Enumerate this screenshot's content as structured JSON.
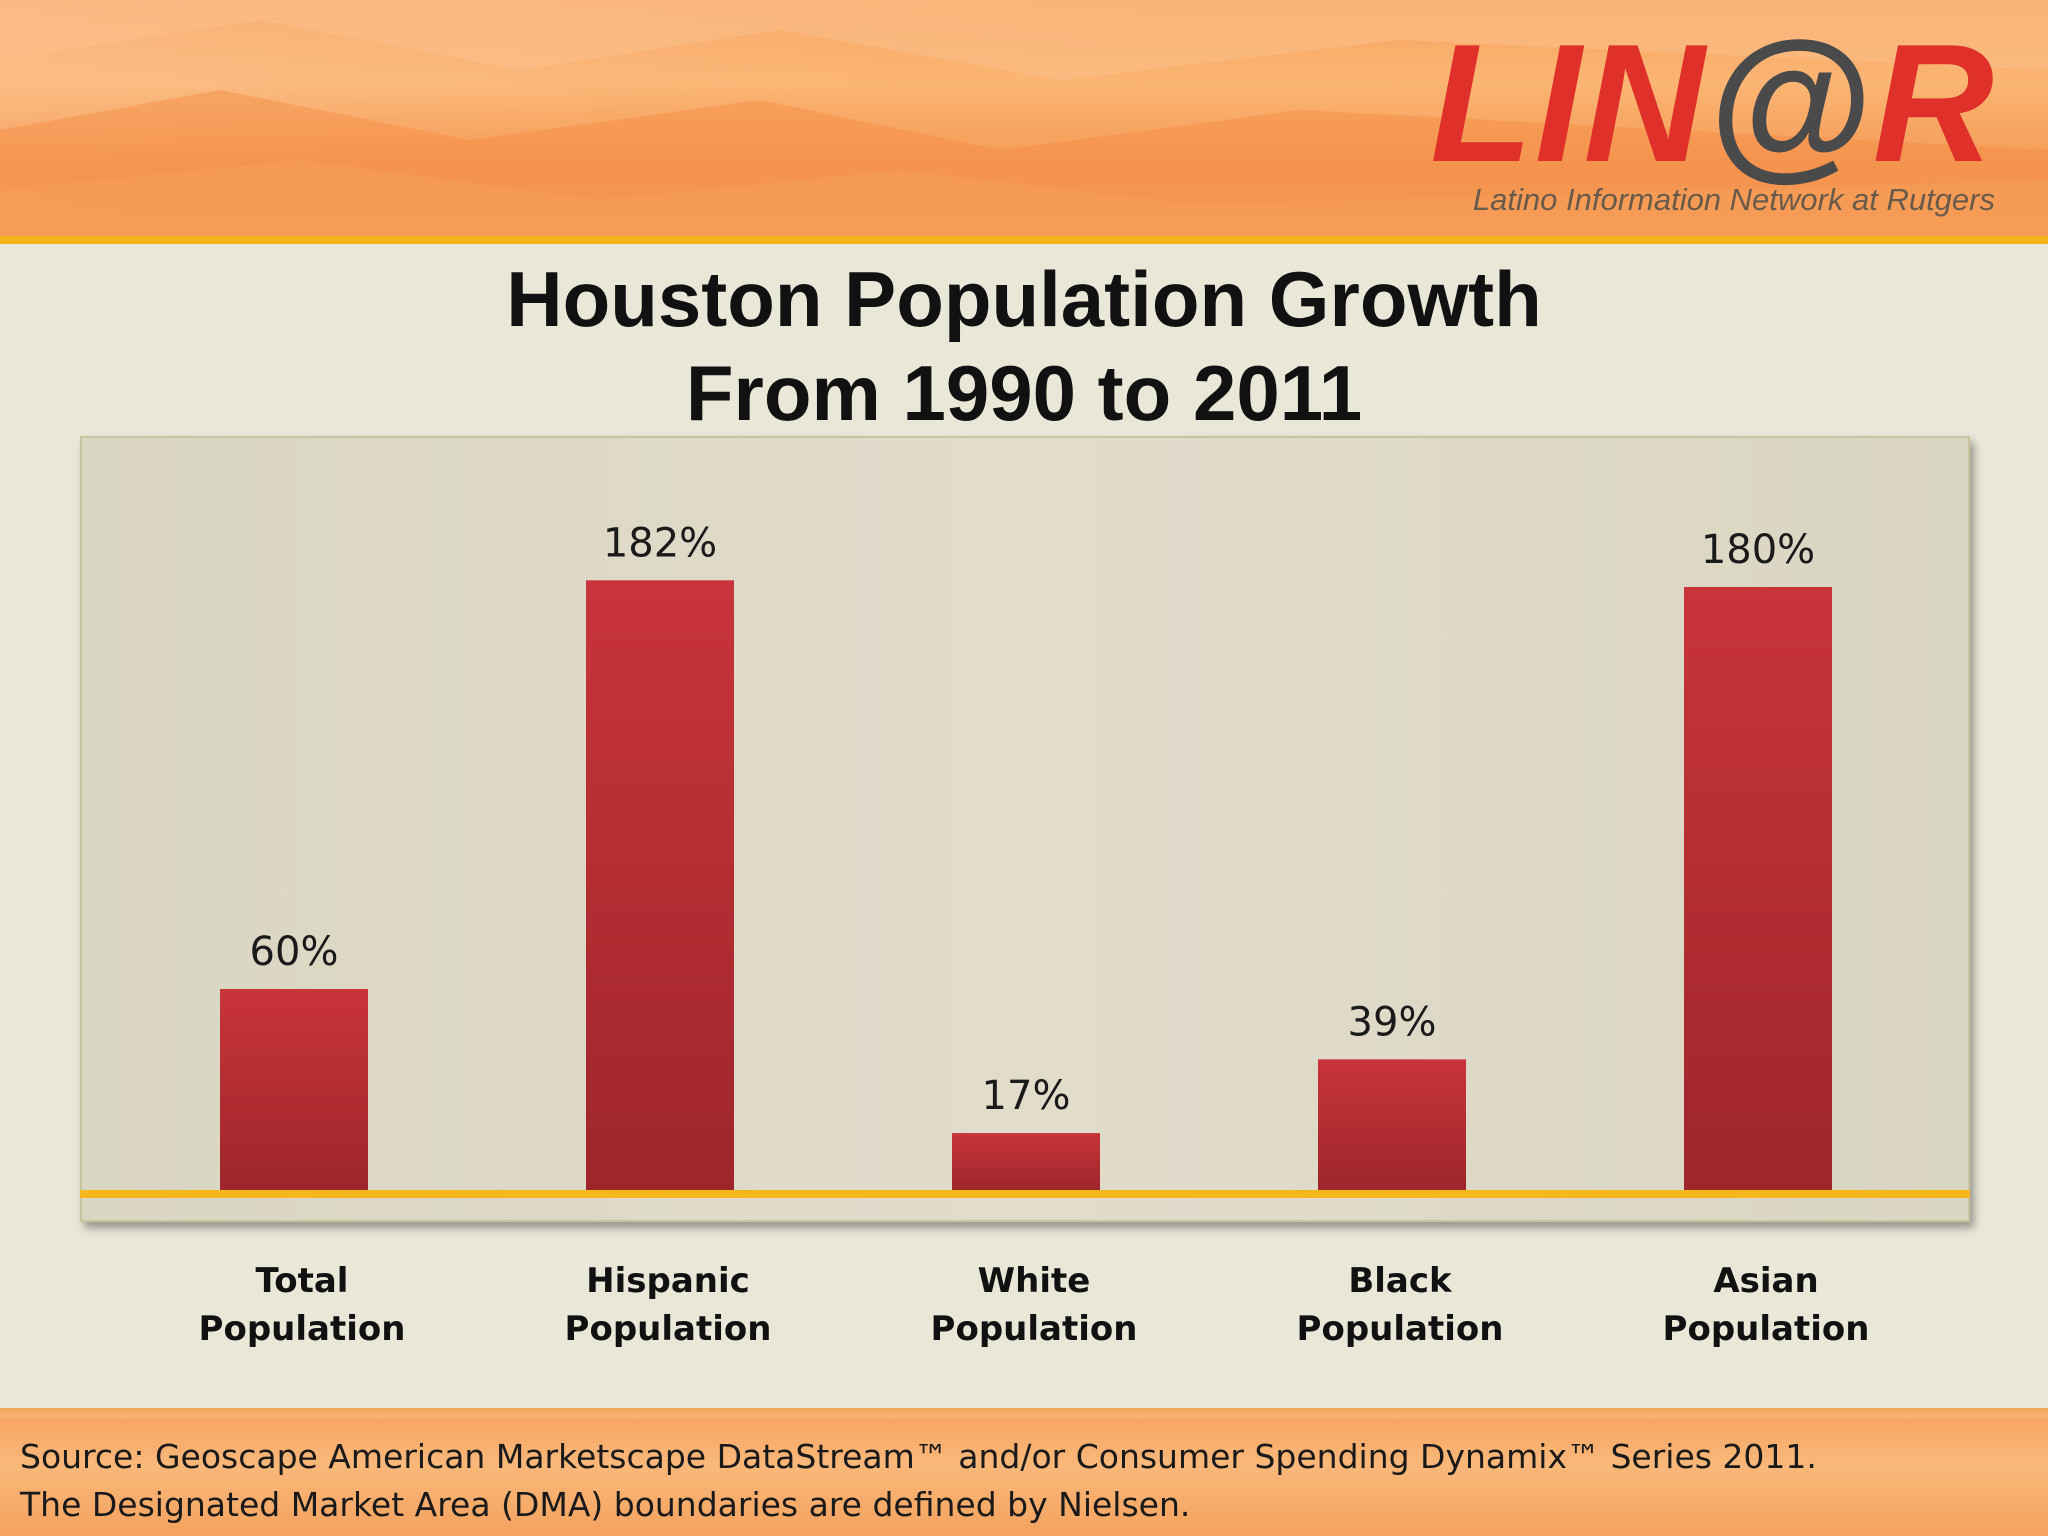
{
  "logo": {
    "prefix": "LIN",
    "at": "@",
    "suffix": "R",
    "tagline": "Latino Information Network at Rutgers"
  },
  "title_lines": [
    "Houston Population Growth",
    "From 1990 to 2011"
  ],
  "chart_data": {
    "type": "bar",
    "title": "Houston Population Growth From 1990 to 2011",
    "categories": [
      [
        "Total",
        "Population"
      ],
      [
        "Hispanic",
        "Population"
      ],
      [
        "White",
        "Population"
      ],
      [
        "Black",
        "Population"
      ],
      [
        "Asian",
        "Population"
      ]
    ],
    "values": [
      60,
      182,
      17,
      39,
      180
    ],
    "data_labels": [
      "60%",
      "182%",
      "17%",
      "39%",
      "180%"
    ],
    "ylim": [
      0,
      200
    ],
    "grid": false,
    "legend": "none",
    "bar_color": "#c8343a",
    "baseline_color": "#f5b81c"
  },
  "source_lines": [
    "Source: Geoscape American Marketscape DataStream™ and/or Consumer Spending Dynamix™ Series 2011.",
    "The Designated Market Area (DMA) boundaries are defined by Nielsen."
  ]
}
